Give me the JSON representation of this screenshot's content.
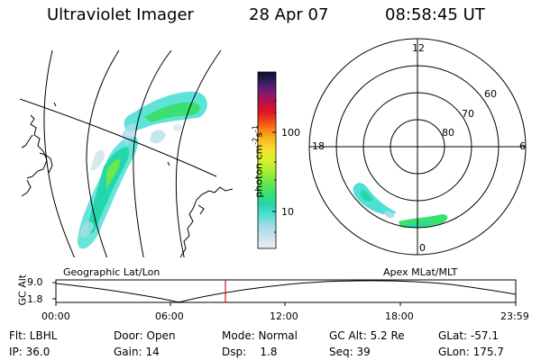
{
  "header": {
    "title": "Ultraviolet Imager",
    "date": "28 Apr 07",
    "time": "08:58:45 UT"
  },
  "geographic_panel": {
    "label": "Geographic Lat/Lon"
  },
  "apex_panel": {
    "label": "Apex MLat/MLT",
    "mlt_labels": {
      "top": "12",
      "left": "18",
      "right": "6",
      "bottom": "0"
    },
    "mlat_labels": [
      "60",
      "70",
      "80"
    ]
  },
  "colorbar": {
    "unit_label": "photon cm",
    "unit_exp1": "-2",
    "unit_s": "s",
    "unit_exp2": "-1",
    "tick_100": "100",
    "tick_10": "10",
    "colors": [
      "#e8f0f4",
      "#d0e2ea",
      "#a8dde8",
      "#4de0d4",
      "#24d6ac",
      "#3ae070",
      "#6de84a",
      "#a8f030",
      "#d8f028",
      "#f8e030",
      "#f8b820",
      "#f88818",
      "#f04818",
      "#e01828",
      "#c01040",
      "#901868",
      "#502070",
      "#281850",
      "#100c30"
    ],
    "colors_order": "bottom-to-top",
    "scale": "log"
  },
  "timeline": {
    "ylabel": "GC Alt",
    "ytick_top": "9.0",
    "ytick_bottom": "1.8",
    "xticks": [
      "00:00",
      "06:00",
      "12:00",
      "18:00",
      "23:59"
    ],
    "marker_color": "#cc2222",
    "marker_time_hours": 8.98
  },
  "status": {
    "flt": "Flt: LBHL",
    "ip": "IP: 36.0",
    "door": "Door: Open",
    "gain": "Gain: 14",
    "mode": "Mode: Normal",
    "dsp": "Dsp:    1.8",
    "gc_alt": "GC Alt: 5.2 Re",
    "seq": "Seq: 39",
    "glat": "GLat: -57.1",
    "glon": "GLon: 175.7"
  }
}
